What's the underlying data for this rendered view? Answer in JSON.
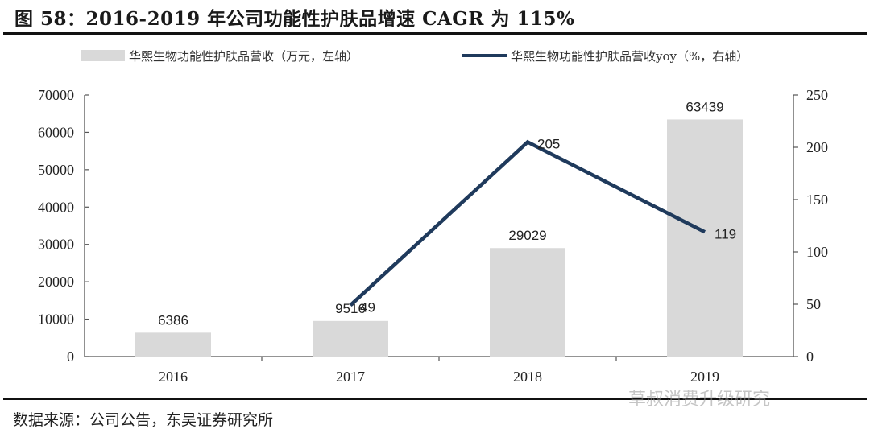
{
  "header": {
    "title": "图 58：2016-2019 年公司功能性护肤品增速 CAGR 为 115%"
  },
  "footer": {
    "source": "数据来源：公司公告，东吴证券研究所",
    "watermark": "草叔消费升级研究"
  },
  "colors": {
    "bar": "#d9d9d9",
    "line": "#1f3a5c",
    "axis": "#555555",
    "rule": "#111111"
  },
  "legend": {
    "bar_label": "华熙生物功能性护肤品营收（万元，左轴）",
    "line_label": "华熙生物功能性护肤品营收yoy（%，右轴）"
  },
  "chart_data": {
    "type": "bar+line",
    "title": "图 58：2016-2019 年公司功能性护肤品增速 CAGR 为 115%",
    "categories": [
      "2016",
      "2017",
      "2018",
      "2019"
    ],
    "series": [
      {
        "name": "华熙生物功能性护肤品营收（万元，左轴）",
        "type": "bar",
        "axis": "left",
        "values": [
          6386,
          9516,
          29029,
          63439
        ],
        "labels": [
          "6386",
          "9516",
          "29029",
          "63439"
        ]
      },
      {
        "name": "华熙生物功能性护肤品营收yoy（%，右轴）",
        "type": "line",
        "axis": "right",
        "values": [
          null,
          49,
          205,
          119
        ],
        "labels": [
          "",
          "49",
          "205",
          "119"
        ]
      }
    ],
    "left_axis": {
      "ylim": [
        0,
        70000
      ],
      "ticks": [
        "0",
        "10000",
        "20000",
        "30000",
        "40000",
        "50000",
        "60000",
        "70000"
      ]
    },
    "right_axis": {
      "ylim": [
        0,
        250
      ],
      "ticks": [
        "0",
        "50",
        "100",
        "150",
        "200",
        "250"
      ]
    },
    "xlabel": "",
    "ylabel": "",
    "grid": false,
    "legend_position": "top"
  }
}
